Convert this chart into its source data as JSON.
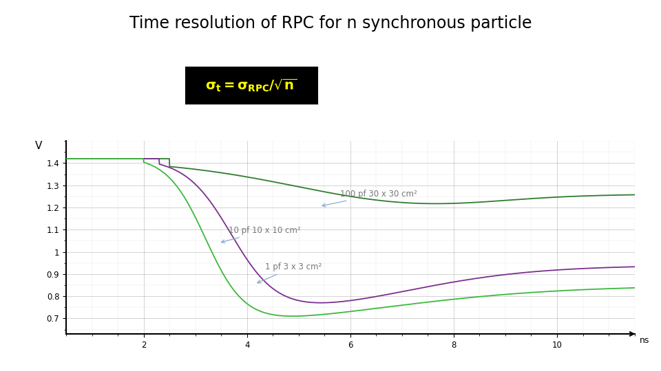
{
  "title": "Time resolution of RPC for n synchronous particle",
  "xlabel": "ns",
  "ylabel": "V",
  "xlim": [
    0.5,
    11.5
  ],
  "ylim": [
    0.63,
    1.5
  ],
  "ytick_positions": [
    1.4,
    1.3,
    1.2,
    1.1,
    1.0,
    0.9,
    0.8,
    0.7
  ],
  "ytick_labels": [
    "1.4",
    "1.3",
    "1.2",
    "1.1",
    "1",
    "0.9",
    "0.8",
    "0.7"
  ],
  "xtick_positions": [
    2,
    4,
    6,
    8,
    10
  ],
  "xtick_labels": [
    "2",
    "4",
    "6",
    "8",
    "10"
  ],
  "curve_100pf": {
    "label": "100 pf 30 x 30 cm²",
    "color": "#2e7d2e",
    "linewidth": 1.3
  },
  "curve_10pf": {
    "label": "10 pf 10 x 10 cm²",
    "color": "#7b2f8f",
    "linewidth": 1.3
  },
  "curve_1pf": {
    "label": "1 pf 3 x 3 cm²",
    "color": "#3cb83c",
    "linewidth": 1.3
  },
  "bg_color": "#ffffff",
  "grid_major_color": "#999999",
  "grid_minor_color": "#cccccc",
  "formula_bg": "#000000",
  "formula_fg": "#ffff00",
  "ann_color": "#777777",
  "ann_fontsize": 8.5,
  "title_fontsize": 17,
  "tick_fontsize": 8.5
}
